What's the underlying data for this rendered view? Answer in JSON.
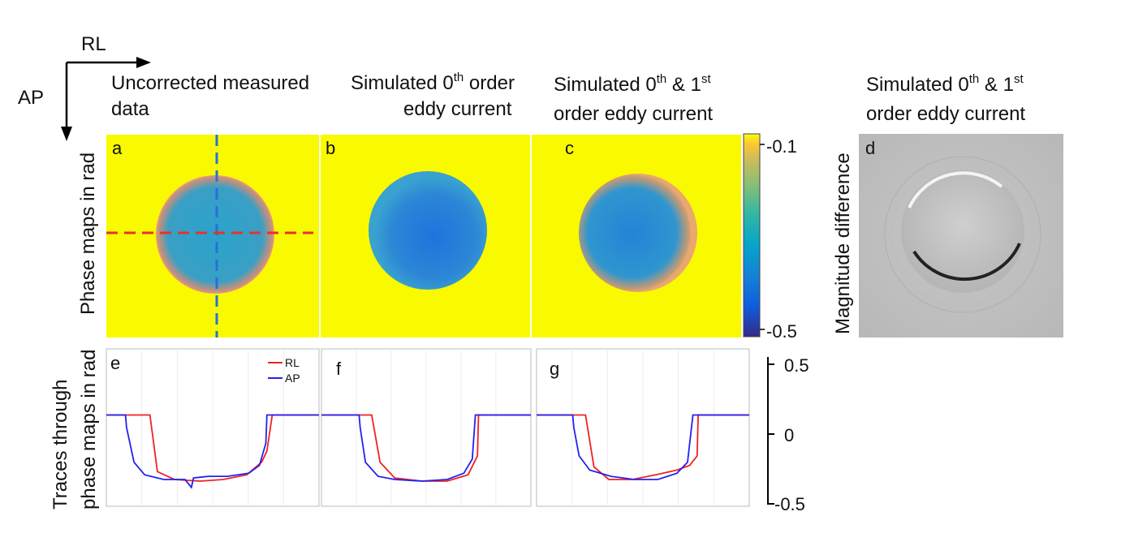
{
  "orientation": {
    "horizontal_label": "RL",
    "vertical_label": "AP"
  },
  "columns": [
    {
      "title_line1": "Uncorrected measured",
      "title_line2": "data",
      "sup1": "",
      "mid": "",
      "sup2": ""
    },
    {
      "title_line1": "Simulated 0",
      "sup1": "th",
      "mid": " order",
      "sup2": "",
      "title_line2": "eddy current"
    },
    {
      "title_line1": "Simulated 0",
      "sup1": "th",
      "mid": " & 1",
      "sup2": "st",
      "title_line2": "order eddy current"
    },
    {
      "title_line1": "Simulated 0",
      "sup1": "th",
      "mid": " & 1",
      "sup2": "st",
      "title_line2": "order eddy current"
    }
  ],
  "row_labels": {
    "phase_maps": "Phase maps in rad",
    "traces_line1": "Traces through",
    "traces_line2": "phase maps in rad",
    "magnitude": "Magnitude difference"
  },
  "panel_letters": {
    "a": "a",
    "b": "b",
    "c": "c",
    "d": "d",
    "e": "e",
    "f": "f",
    "g": "g"
  },
  "colors": {
    "yellow": "#f9f900",
    "disk_blue": "#2f8fd2",
    "rl_line": "#ee2222",
    "ap_line": "#2222ee",
    "grey_bg": "#c4c4c4"
  },
  "chart_data": [
    {
      "type": "heatmap",
      "panel": "colorbar",
      "colormap": "parula",
      "range": [
        -0.5,
        -0.1
      ],
      "ticks": [
        "-0.1",
        "-0.5"
      ]
    },
    {
      "type": "line",
      "panel": "e",
      "ylim": [
        -0.5,
        0.5
      ],
      "yticks": [
        "0.5",
        "0",
        "-0.5"
      ],
      "legend_position": "top-right",
      "series": [
        {
          "name": "RL",
          "color": "#ee2222",
          "x": [
            0,
            0.18,
            0.205,
            0.24,
            0.32,
            0.44,
            0.55,
            0.66,
            0.73,
            0.755,
            0.78,
            1
          ],
          "y": [
            0.08,
            0.08,
            0.08,
            -0.28,
            -0.33,
            -0.34,
            -0.33,
            -0.3,
            -0.22,
            -0.15,
            0.08,
            0.08
          ]
        },
        {
          "name": "AP",
          "color": "#2222ee",
          "x": [
            0,
            0.09,
            0.095,
            0.13,
            0.18,
            0.27,
            0.37,
            0.4,
            0.41,
            0.48,
            0.57,
            0.67,
            0.72,
            0.75,
            0.755,
            1
          ],
          "y": [
            0.08,
            0.08,
            0.0,
            -0.22,
            -0.3,
            -0.33,
            -0.33,
            -0.38,
            -0.32,
            -0.31,
            -0.31,
            -0.29,
            -0.24,
            -0.1,
            0.08,
            0.08
          ]
        }
      ]
    },
    {
      "type": "line",
      "panel": "f",
      "ylim": [
        -0.5,
        0.5
      ],
      "series": [
        {
          "name": "RL",
          "color": "#ee2222",
          "x": [
            0,
            0.23,
            0.24,
            0.28,
            0.35,
            0.48,
            0.6,
            0.7,
            0.745,
            0.75,
            1
          ],
          "y": [
            0.08,
            0.08,
            0.08,
            -0.22,
            -0.32,
            -0.34,
            -0.34,
            -0.3,
            -0.18,
            0.08,
            0.08
          ]
        },
        {
          "name": "AP",
          "color": "#2222ee",
          "x": [
            0,
            0.18,
            0.185,
            0.21,
            0.27,
            0.35,
            0.48,
            0.6,
            0.68,
            0.72,
            0.735,
            1
          ],
          "y": [
            0.08,
            0.08,
            0.0,
            -0.22,
            -0.31,
            -0.33,
            -0.34,
            -0.33,
            -0.29,
            -0.2,
            0.08,
            0.08
          ]
        }
      ]
    },
    {
      "type": "line",
      "panel": "g",
      "ylim": [
        -0.5,
        0.5
      ],
      "series": [
        {
          "name": "RL",
          "color": "#ee2222",
          "x": [
            0,
            0.22,
            0.23,
            0.27,
            0.34,
            0.45,
            0.56,
            0.66,
            0.72,
            0.755,
            0.76,
            1
          ],
          "y": [
            0.08,
            0.08,
            0.08,
            -0.25,
            -0.33,
            -0.33,
            -0.3,
            -0.27,
            -0.24,
            -0.18,
            0.08,
            0.08
          ]
        },
        {
          "name": "AP",
          "color": "#2222ee",
          "x": [
            0,
            0.17,
            0.175,
            0.2,
            0.25,
            0.35,
            0.46,
            0.57,
            0.66,
            0.71,
            0.735,
            1
          ],
          "y": [
            0.08,
            0.08,
            0.0,
            -0.18,
            -0.27,
            -0.31,
            -0.33,
            -0.33,
            -0.29,
            -0.22,
            0.08,
            0.08
          ]
        }
      ]
    }
  ]
}
